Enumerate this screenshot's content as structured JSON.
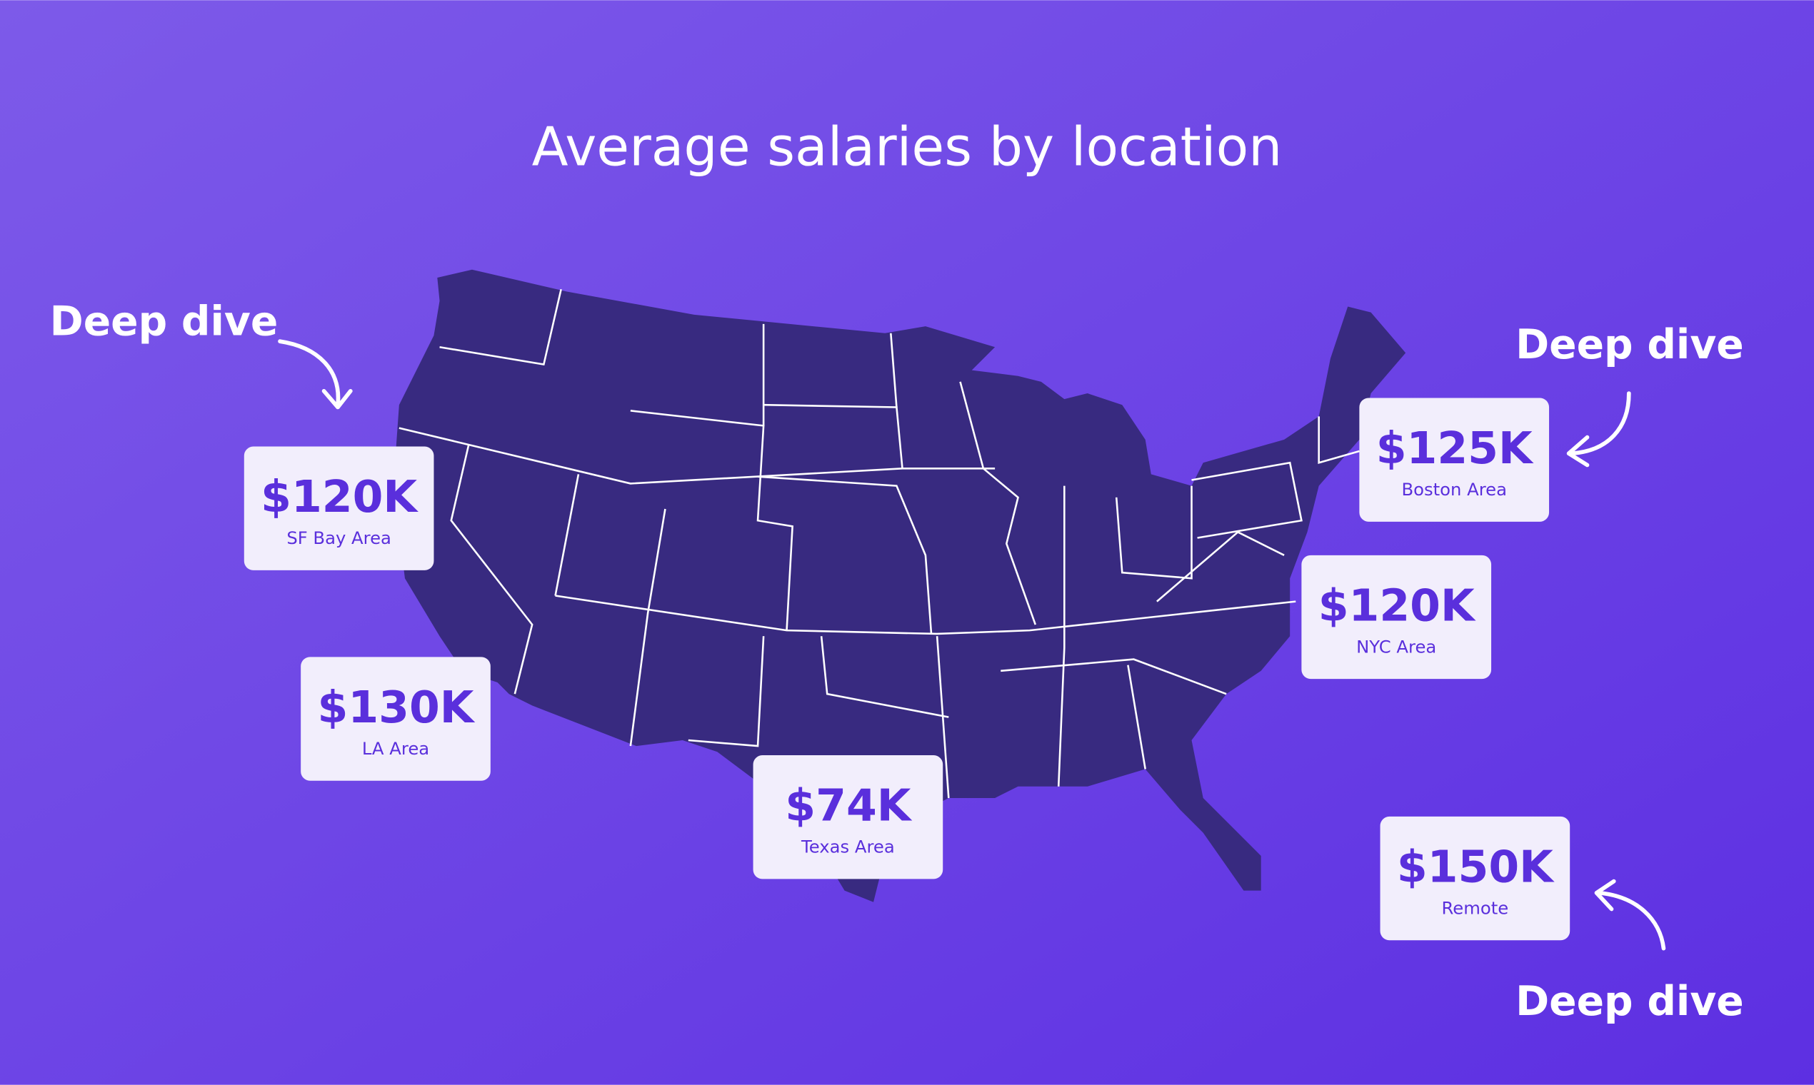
{
  "title": "Average salaries by location",
  "annotations": [
    "Deep dive",
    "Deep dive",
    "Deep dive"
  ],
  "cards": [
    {
      "value": "$120K",
      "label": "SF Bay Area"
    },
    {
      "value": "$130K",
      "label": "LA Area"
    },
    {
      "value": "$74K",
      "label": "Texas Area"
    },
    {
      "value": "$125K",
      "label": "Boston Area"
    },
    {
      "value": "$120K",
      "label": "NYC Area"
    },
    {
      "value": "$150K",
      "label": "Remote"
    }
  ]
}
